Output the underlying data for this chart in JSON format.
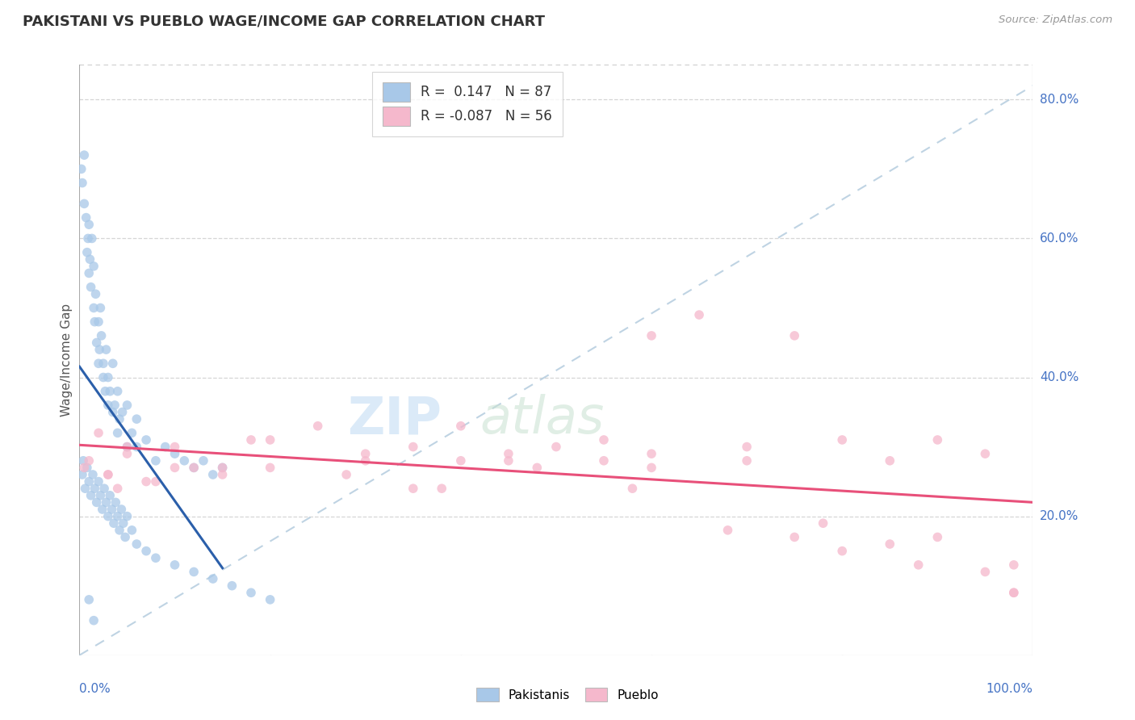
{
  "title": "PAKISTANI VS PUEBLO WAGE/INCOME GAP CORRELATION CHART",
  "source": "Source: ZipAtlas.com",
  "ylabel": "Wage/Income Gap",
  "r_pakistani": 0.147,
  "n_pakistani": 87,
  "r_pueblo": -0.087,
  "n_pueblo": 56,
  "blue_scatter_color": "#a8c8e8",
  "pink_scatter_color": "#f5b8cc",
  "blue_line_color": "#2b5faa",
  "pink_line_color": "#e8507a",
  "dash_line_color": "#b8cfe0",
  "grid_color": "#cccccc",
  "right_axis_color": "#4472c4",
  "title_color": "#333333",
  "source_color": "#999999",
  "xlim_min": 0,
  "xlim_max": 100,
  "ylim_min": 0,
  "ylim_max": 85,
  "right_ytick_vals": [
    20,
    40,
    60,
    80
  ],
  "right_ytick_labels": [
    "20.0%",
    "40.0%",
    "60.0%",
    "80.0%"
  ],
  "x_left_label": "0.0%",
  "x_right_label": "100.0%",
  "legend_label1": "R =  0.147   N = 87",
  "legend_label2": "R = -0.087   N = 56",
  "bottom_legend": [
    "Pakistanis",
    "Pueblo"
  ],
  "pakistani_x": [
    0.2,
    0.3,
    0.5,
    0.5,
    0.7,
    0.8,
    0.9,
    1.0,
    1.0,
    1.1,
    1.2,
    1.3,
    1.5,
    1.5,
    1.6,
    1.7,
    1.8,
    2.0,
    2.0,
    2.1,
    2.2,
    2.3,
    2.5,
    2.5,
    2.7,
    2.8,
    3.0,
    3.0,
    3.2,
    3.5,
    3.5,
    3.7,
    4.0,
    4.0,
    4.2,
    4.5,
    5.0,
    5.0,
    5.5,
    6.0,
    6.0,
    7.0,
    8.0,
    9.0,
    10.0,
    11.0,
    12.0,
    13.0,
    14.0,
    15.0,
    0.3,
    0.4,
    0.6,
    0.8,
    1.0,
    1.2,
    1.4,
    1.6,
    1.8,
    2.0,
    2.2,
    2.4,
    2.6,
    2.8,
    3.0,
    3.2,
    3.4,
    3.6,
    3.8,
    4.0,
    4.2,
    4.4,
    4.6,
    4.8,
    5.0,
    5.5,
    6.0,
    7.0,
    8.0,
    10.0,
    12.0,
    14.0,
    16.0,
    18.0,
    20.0,
    1.0,
    1.5
  ],
  "pakistani_y": [
    70.0,
    68.0,
    72.0,
    65.0,
    63.0,
    58.0,
    60.0,
    55.0,
    62.0,
    57.0,
    53.0,
    60.0,
    50.0,
    56.0,
    48.0,
    52.0,
    45.0,
    42.0,
    48.0,
    44.0,
    50.0,
    46.0,
    40.0,
    42.0,
    38.0,
    44.0,
    36.0,
    40.0,
    38.0,
    35.0,
    42.0,
    36.0,
    32.0,
    38.0,
    34.0,
    35.0,
    30.0,
    36.0,
    32.0,
    30.0,
    34.0,
    31.0,
    28.0,
    30.0,
    29.0,
    28.0,
    27.0,
    28.0,
    26.0,
    27.0,
    26.0,
    28.0,
    24.0,
    27.0,
    25.0,
    23.0,
    26.0,
    24.0,
    22.0,
    25.0,
    23.0,
    21.0,
    24.0,
    22.0,
    20.0,
    23.0,
    21.0,
    19.0,
    22.0,
    20.0,
    18.0,
    21.0,
    19.0,
    17.0,
    20.0,
    18.0,
    16.0,
    15.0,
    14.0,
    13.0,
    12.0,
    11.0,
    10.0,
    9.0,
    8.0,
    8.0,
    5.0
  ],
  "pueblo_x": [
    0.5,
    1.0,
    2.0,
    3.0,
    4.0,
    5.0,
    7.0,
    10.0,
    12.0,
    15.0,
    20.0,
    25.0,
    30.0,
    35.0,
    40.0,
    45.0,
    50.0,
    55.0,
    60.0,
    65.0,
    70.0,
    75.0,
    80.0,
    85.0,
    90.0,
    95.0,
    98.0,
    3.0,
    8.0,
    18.0,
    28.0,
    38.0,
    48.0,
    58.0,
    68.0,
    78.0,
    88.0,
    98.0,
    15.0,
    30.0,
    45.0,
    60.0,
    75.0,
    90.0,
    5.0,
    20.0,
    40.0,
    60.0,
    80.0,
    98.0,
    10.0,
    35.0,
    55.0,
    70.0,
    85.0,
    95.0
  ],
  "pueblo_y": [
    27.0,
    28.0,
    32.0,
    26.0,
    24.0,
    29.0,
    25.0,
    30.0,
    27.0,
    26.0,
    31.0,
    33.0,
    28.0,
    30.0,
    33.0,
    28.0,
    30.0,
    31.0,
    46.0,
    49.0,
    30.0,
    46.0,
    31.0,
    28.0,
    31.0,
    29.0,
    13.0,
    26.0,
    25.0,
    31.0,
    26.0,
    24.0,
    27.0,
    24.0,
    18.0,
    19.0,
    13.0,
    9.0,
    27.0,
    29.0,
    29.0,
    27.0,
    17.0,
    17.0,
    30.0,
    27.0,
    28.0,
    29.0,
    15.0,
    9.0,
    27.0,
    24.0,
    28.0,
    28.0,
    16.0,
    12.0
  ]
}
